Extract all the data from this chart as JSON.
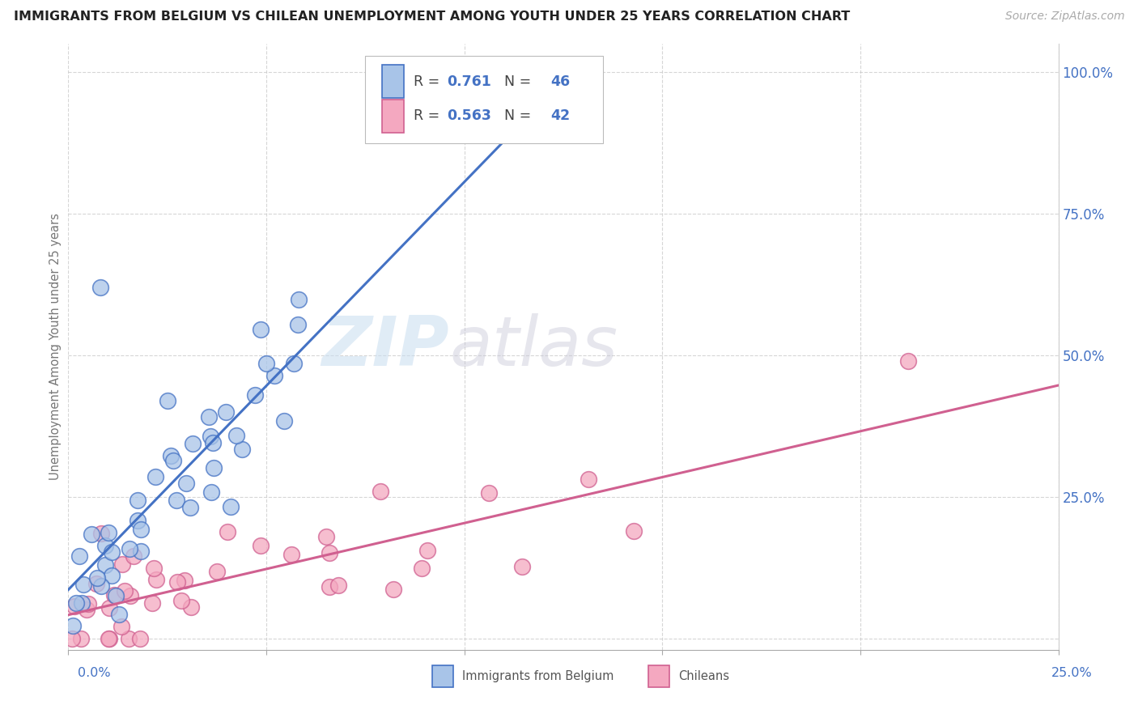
{
  "title": "IMMIGRANTS FROM BELGIUM VS CHILEAN UNEMPLOYMENT AMONG YOUTH UNDER 25 YEARS CORRELATION CHART",
  "source": "Source: ZipAtlas.com",
  "ylabel": "Unemployment Among Youth under 25 years",
  "xlim": [
    0.0,
    0.25
  ],
  "ylim": [
    -0.02,
    1.05
  ],
  "ytick_pos": [
    0.0,
    0.25,
    0.5,
    0.75,
    1.0
  ],
  "ytick_labels": [
    "",
    "25.0%",
    "50.0%",
    "75.0%",
    "100.0%"
  ],
  "blue_R": 0.761,
  "blue_N": 46,
  "pink_R": 0.563,
  "pink_N": 42,
  "blue_fill": "#a8c4e8",
  "blue_edge": "#4472c4",
  "pink_fill": "#f4a8c0",
  "pink_edge": "#d06090",
  "blue_line": "#4472c4",
  "pink_line": "#d06090",
  "watermark_zip": "ZIP",
  "watermark_atlas": "atlas",
  "bg": "#ffffff",
  "grid_color": "#cccccc",
  "title_color": "#222222",
  "source_color": "#aaaaaa",
  "ylabel_color": "#777777",
  "axis_label_color": "#4472c4",
  "legend_text_color": "#444444",
  "legend_num_color": "#4472c4"
}
